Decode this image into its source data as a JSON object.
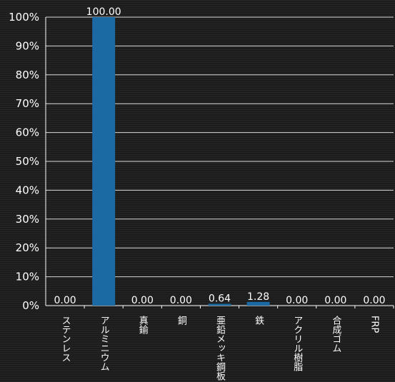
{
  "chart_data": {
    "type": "bar",
    "categories": [
      "ステンレス",
      "アルミニウム",
      "真鍮",
      "銅",
      "亜鉛メッキ鋼板",
      "鉄",
      "アクリル樹脂",
      "合成ゴム",
      "FRP"
    ],
    "values": [
      0.0,
      100.0,
      0.0,
      0.0,
      0.64,
      1.28,
      0.0,
      0.0,
      0.0
    ],
    "data_labels": [
      "0.00",
      "100.00",
      "0.00",
      "0.00",
      "0.64",
      "1.28",
      "0.00",
      "0.00",
      "0.00"
    ],
    "y_ticks": [
      "0%",
      "10%",
      "20%",
      "30%",
      "40%",
      "50%",
      "60%",
      "70%",
      "80%",
      "90%",
      "100%"
    ],
    "ylim": [
      0,
      100
    ],
    "grid": true,
    "bar_color": "#1b6aa4",
    "title": "",
    "xlabel": "",
    "ylabel": ""
  }
}
